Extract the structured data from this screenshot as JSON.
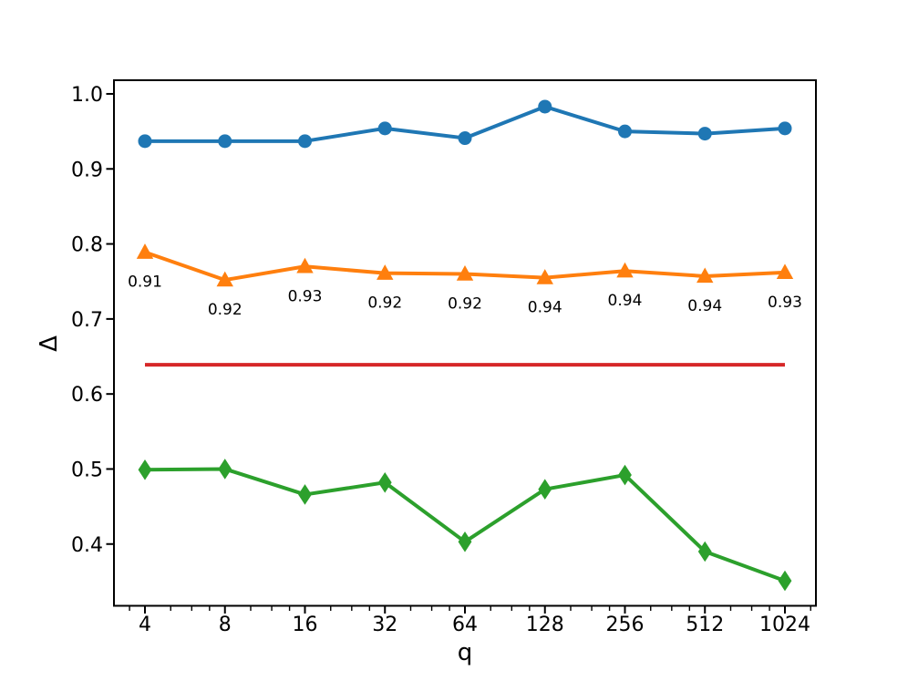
{
  "chart_data": {
    "type": "line",
    "title": "",
    "xlabel": "q",
    "ylabel": "Δ",
    "xscale": "log2",
    "grid": false,
    "legend": false,
    "x": [
      4,
      8,
      16,
      32,
      64,
      128,
      256,
      512,
      1024
    ],
    "xtick_labels": [
      "4",
      "8",
      "16",
      "32",
      "64",
      "128",
      "256",
      "512",
      "1024"
    ],
    "yticks": [
      0.4,
      0.5,
      0.6,
      0.7,
      0.8,
      0.9,
      1.0
    ],
    "ytick_labels": [
      "0.4",
      "0.5",
      "0.6",
      "0.7",
      "0.8",
      "0.9",
      "1.0"
    ],
    "xlim": [
      3.058,
      1339.6
    ],
    "ylim": [
      0.3177,
      1.0182
    ],
    "series": [
      {
        "name": "blue-circles",
        "color": "#1f77b4",
        "marker": "circle",
        "values": [
          0.937,
          0.937,
          0.937,
          0.954,
          0.941,
          0.983,
          0.95,
          0.947,
          0.954
        ]
      },
      {
        "name": "orange-triangles",
        "color": "#ff7f0e",
        "marker": "triangle-up",
        "values": [
          0.789,
          0.752,
          0.77,
          0.761,
          0.76,
          0.755,
          0.764,
          0.757,
          0.762
        ],
        "point_labels": [
          "0.91",
          "0.92",
          "0.93",
          "0.92",
          "0.92",
          "0.94",
          "0.94",
          "0.94",
          "0.93"
        ]
      },
      {
        "name": "green-diamonds",
        "color": "#2ca02c",
        "marker": "thin-diamond",
        "values": [
          0.499,
          0.5,
          0.466,
          0.482,
          0.403,
          0.473,
          0.492,
          0.39,
          0.351
        ]
      },
      {
        "name": "red-baseline",
        "color": "#d62728",
        "marker": "none",
        "values": [
          0.639,
          0.639,
          0.639,
          0.639,
          0.639,
          0.639,
          0.639,
          0.639,
          0.639
        ]
      }
    ]
  }
}
